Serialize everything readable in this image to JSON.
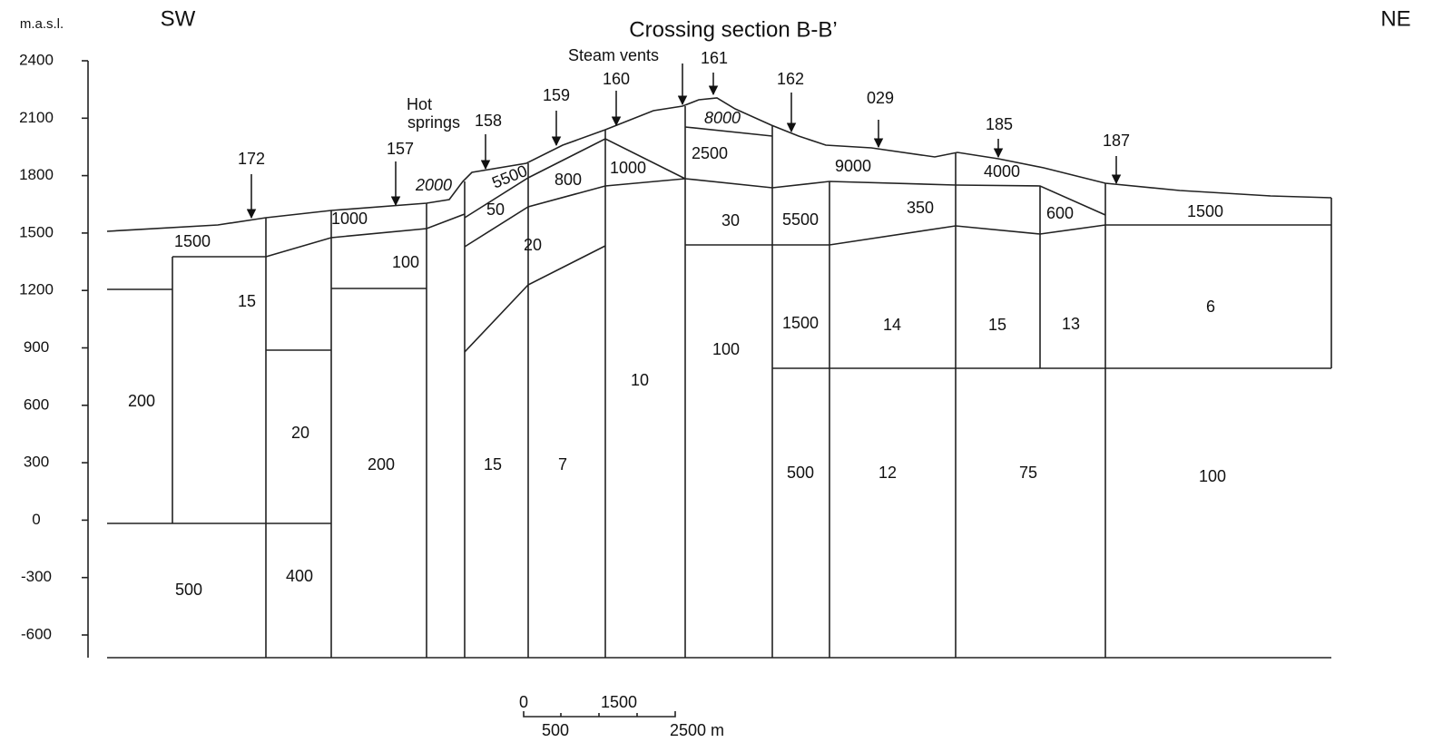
{
  "axis": {
    "unit": "m.a.s.l.",
    "ticks": [
      2400,
      2100,
      1800,
      1500,
      1200,
      900,
      600,
      300,
      0,
      -300,
      -600
    ]
  },
  "header": {
    "left": "SW",
    "right": "NE",
    "title": "Crossing section B-B’"
  },
  "annotations": {
    "steam_vents": "Steam vents",
    "hot_springs": [
      "Hot",
      "springs"
    ]
  },
  "stations": [
    "172",
    "157",
    "158",
    "159",
    "160",
    "161",
    "162",
    "029",
    "185",
    "187"
  ],
  "resistivities": [
    "1500",
    "1000",
    "2000",
    "5500",
    "800",
    "1000",
    "2500",
    "8000",
    "9000",
    "4000",
    "1500",
    "50",
    "30",
    "5500",
    "350",
    "600",
    "100",
    "20",
    "15",
    "1500",
    "14",
    "15",
    "13",
    "6",
    "200",
    "20",
    "200",
    "15",
    "7",
    "10",
    "100",
    "500",
    "12",
    "75",
    "100",
    "500",
    "400"
  ],
  "scale_bar": {
    "top": [
      "0",
      "1500"
    ],
    "bottom": [
      "500",
      "2500 m"
    ]
  }
}
